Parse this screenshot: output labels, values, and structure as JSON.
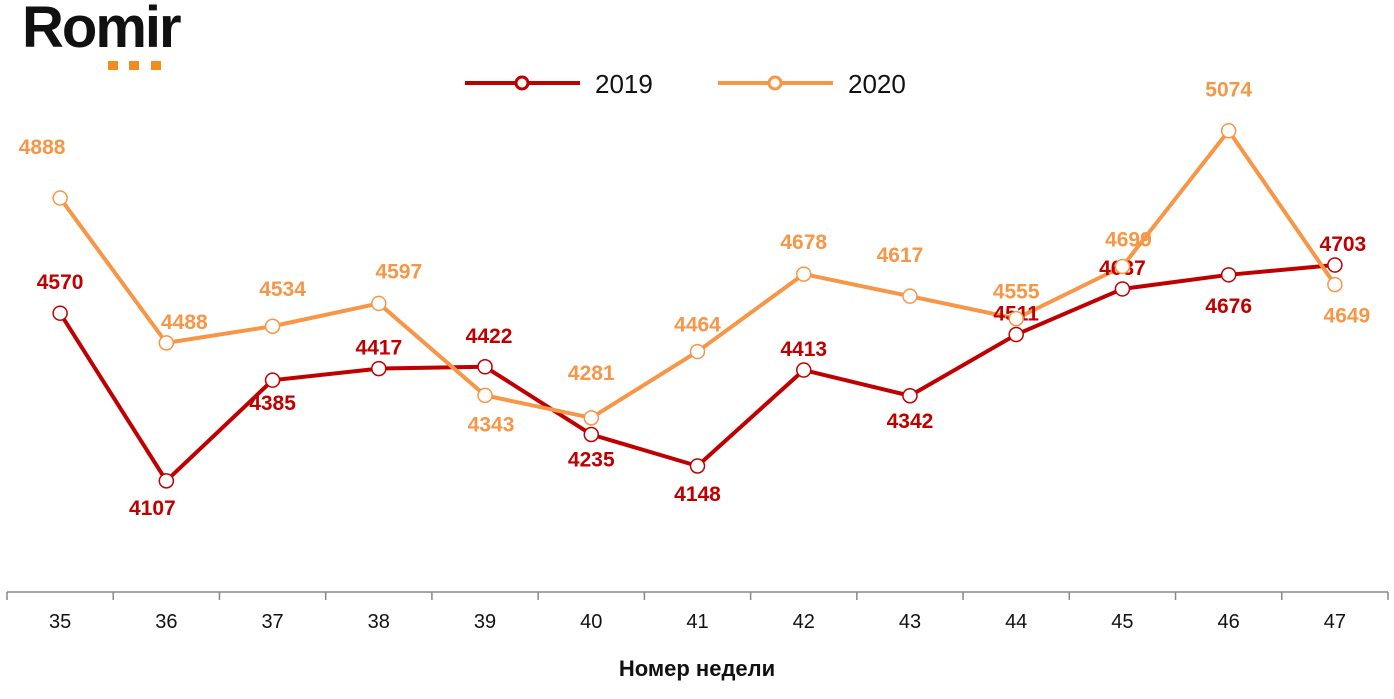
{
  "logo": {
    "text": "Romir"
  },
  "chart_data": {
    "type": "line",
    "categories": [
      "35",
      "36",
      "37",
      "38",
      "39",
      "40",
      "41",
      "42",
      "43",
      "44",
      "45",
      "46",
      "47"
    ],
    "series": [
      {
        "name": "2019",
        "color": "#c00000",
        "values": [
          4570,
          4107,
          4385,
          4417,
          4422,
          4235,
          4148,
          4413,
          4342,
          4511,
          4637,
          4676,
          4703
        ]
      },
      {
        "name": "2020",
        "color": "#f79646",
        "values": [
          4888,
          4488,
          4534,
          4597,
          4343,
          4281,
          4464,
          4678,
          4617,
          4555,
          4699,
          5074,
          4649
        ]
      }
    ],
    "title": "",
    "xlabel": "Номер недели",
    "ylabel": "",
    "ylim": [
      3800,
      5435
    ],
    "grid": false,
    "legend": "top"
  }
}
